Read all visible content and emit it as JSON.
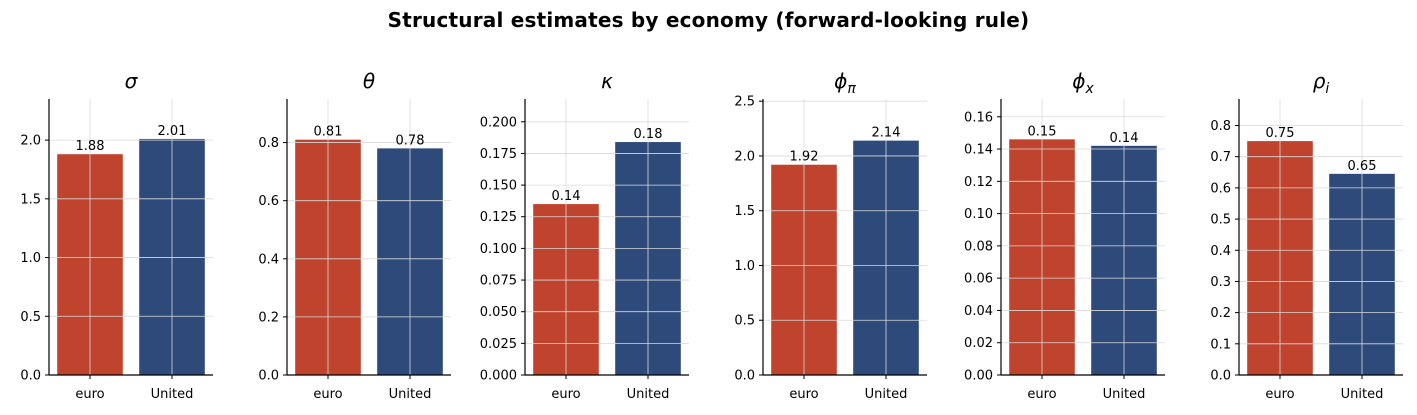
{
  "figure_title": "Structural estimates by economy (forward-looking rule)",
  "colors": {
    "euro": "#c0432e",
    "united": "#2e4a7a",
    "grid": "#d9d9d9",
    "axis": "#000000"
  },
  "chart_data": [
    {
      "type": "bar",
      "title": "σ",
      "title_sub": "",
      "categories": [
        "euro",
        "United"
      ],
      "values": [
        1.88,
        2.01
      ],
      "value_labels": [
        "1.88",
        "2.01"
      ],
      "ylim": [
        0,
        2.35
      ],
      "ticks": [
        0.0,
        0.5,
        1.0,
        1.5,
        2.0
      ],
      "tick_labels": [
        "0.0",
        "0.5",
        "1.0",
        "1.5",
        "2.0"
      ],
      "grid": true
    },
    {
      "type": "bar",
      "title": "θ",
      "title_sub": "",
      "categories": [
        "euro",
        "United"
      ],
      "values": [
        0.81,
        0.78
      ],
      "value_labels": [
        "0.81",
        "0.78"
      ],
      "ylim": [
        0,
        0.95
      ],
      "ticks": [
        0.0,
        0.2,
        0.4,
        0.6,
        0.8
      ],
      "tick_labels": [
        "0.0",
        "0.2",
        "0.4",
        "0.6",
        "0.8"
      ],
      "grid": true
    },
    {
      "type": "bar",
      "title": "κ",
      "title_sub": "",
      "categories": [
        "euro",
        "United"
      ],
      "values": [
        0.135,
        0.184
      ],
      "value_labels": [
        "0.14",
        "0.18"
      ],
      "ylim": [
        0,
        0.218
      ],
      "ticks": [
        0.0,
        0.025,
        0.05,
        0.075,
        0.1,
        0.125,
        0.15,
        0.175,
        0.2
      ],
      "tick_labels": [
        "0.000",
        "0.025",
        "0.050",
        "0.075",
        "0.100",
        "0.125",
        "0.150",
        "0.175",
        "0.200"
      ],
      "grid": true
    },
    {
      "type": "bar",
      "title": "ϕ",
      "title_sub": "π",
      "categories": [
        "euro",
        "United"
      ],
      "values": [
        1.92,
        2.14
      ],
      "value_labels": [
        "1.92",
        "2.14"
      ],
      "ylim": [
        0,
        2.52
      ],
      "ticks": [
        0.0,
        0.5,
        1.0,
        1.5,
        2.0,
        2.5
      ],
      "tick_labels": [
        "0.0",
        "0.5",
        "1.0",
        "1.5",
        "2.0",
        "2.5"
      ],
      "grid": true
    },
    {
      "type": "bar",
      "title": "ϕ",
      "title_sub": "x",
      "categories": [
        "euro",
        "United"
      ],
      "values": [
        0.146,
        0.142
      ],
      "value_labels": [
        "0.15",
        "0.14"
      ],
      "ylim": [
        0,
        0.171
      ],
      "ticks": [
        0.0,
        0.02,
        0.04,
        0.06,
        0.08,
        0.1,
        0.12,
        0.14,
        0.16
      ],
      "tick_labels": [
        "0.00",
        "0.02",
        "0.04",
        "0.06",
        "0.08",
        "0.10",
        "0.12",
        "0.14",
        "0.16"
      ],
      "grid": true
    },
    {
      "type": "bar",
      "title": "ρ",
      "title_sub": "i",
      "categories": [
        "euro",
        "United"
      ],
      "values": [
        0.75,
        0.645
      ],
      "value_labels": [
        "0.75",
        "0.65"
      ],
      "ylim": [
        0,
        0.885
      ],
      "ticks": [
        0.0,
        0.1,
        0.2,
        0.3,
        0.4,
        0.5,
        0.6,
        0.7,
        0.8
      ],
      "tick_labels": [
        "0.0",
        "0.1",
        "0.2",
        "0.3",
        "0.4",
        "0.5",
        "0.6",
        "0.7",
        "0.8"
      ],
      "grid": true
    }
  ]
}
